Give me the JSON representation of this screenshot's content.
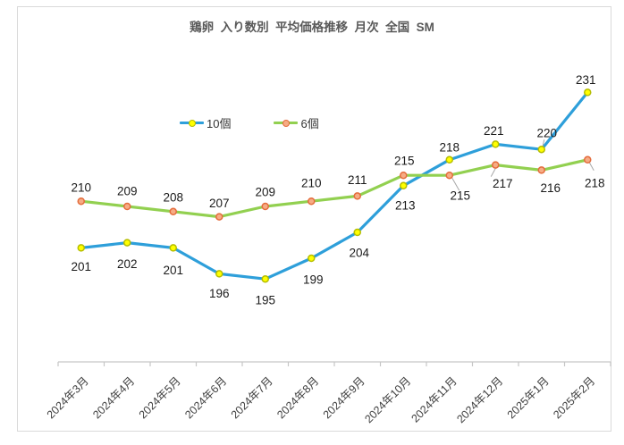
{
  "chart_data": {
    "type": "line",
    "title": "鶏卵  入り数別  平均価格推移  月次  全国  SM",
    "categories": [
      "2024年3月",
      "2024年4月",
      "2024年5月",
      "2024年6月",
      "2024年7月",
      "2024年8月",
      "2024年9月",
      "2024年10月",
      "2024年11月",
      "2024年12月",
      "2025年1月",
      "2025年2月"
    ],
    "series": [
      {
        "name": "10個",
        "values": [
          201,
          202,
          201,
          196,
          195,
          199,
          204,
          213,
          218,
          221,
          220,
          231
        ],
        "line_color": "#2E9FDA",
        "marker_fill": "#FFFF00",
        "marker_stroke": "#B5BD00",
        "label_offsets": [
          [
            0,
            21
          ],
          [
            0,
            24
          ],
          [
            0,
            25
          ],
          [
            0,
            22
          ],
          [
            0,
            24
          ],
          [
            2,
            24
          ],
          [
            2,
            23
          ],
          [
            2,
            22
          ],
          [
            0,
            -14
          ],
          [
            -2,
            -15
          ],
          [
            6,
            -18
          ],
          [
            -2,
            -14
          ]
        ],
        "leaders": [
          {
            "index": 10,
            "from": [
              3,
              -11
            ],
            "to": [
              1,
              -2
            ]
          }
        ]
      },
      {
        "name": "6個",
        "values": [
          210,
          209,
          208,
          207,
          209,
          210,
          211,
          215,
          215,
          217,
          216,
          218
        ],
        "line_color": "#92D050",
        "marker_fill": "#F6AC85",
        "marker_stroke": "#E46C3C",
        "label_offsets": [
          [
            0,
            -15
          ],
          [
            0,
            -17
          ],
          [
            0,
            -16
          ],
          [
            0,
            -15
          ],
          [
            0,
            -16
          ],
          [
            0,
            -20
          ],
          [
            0,
            -18
          ],
          [
            1,
            -16
          ],
          [
            12,
            23
          ],
          [
            8,
            21
          ],
          [
            10,
            20
          ],
          [
            8,
            26
          ]
        ],
        "leaders": [
          {
            "index": 8,
            "from": [
              3,
              3
            ],
            "to": [
              11,
              17
            ]
          },
          {
            "index": 9,
            "from": [
              1,
              2
            ],
            "to": [
              -5,
              13
            ]
          },
          {
            "index": 11,
            "from": [
              2,
              3
            ],
            "to": [
              7,
              12
            ]
          }
        ]
      }
    ],
    "ylim": [
      179,
      235
    ],
    "grid": false,
    "legend_position": "top-center",
    "axis_color": "#C6C6C6",
    "leader_color": "#A6A6A6",
    "label_color": "#1A1A1A",
    "tick_label_color": "#3F3F3F"
  }
}
